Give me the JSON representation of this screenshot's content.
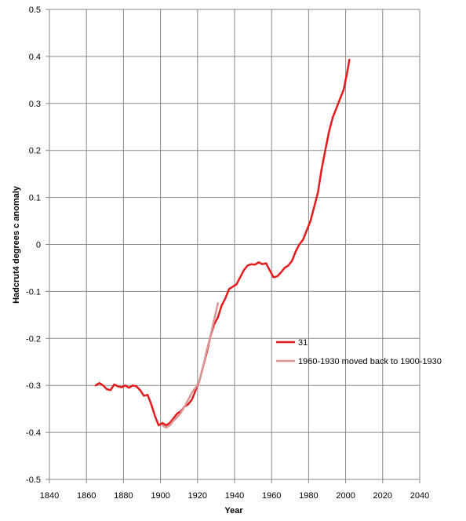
{
  "chart_data": {
    "type": "line",
    "title": "",
    "xlabel": "Year",
    "ylabel": "Hadcrut4 degrees c anomaly",
    "xlim": [
      1840,
      2040
    ],
    "ylim": [
      -0.5,
      0.5
    ],
    "x_ticks": [
      1840,
      1860,
      1880,
      1900,
      1920,
      1940,
      1960,
      1980,
      2000,
      2020,
      2040
    ],
    "y_ticks": [
      -0.5,
      -0.4,
      -0.3,
      -0.2,
      -0.1,
      0,
      0.1,
      0.2,
      0.3,
      0.4,
      0.5
    ],
    "grid": true,
    "legend_position": "right",
    "series": [
      {
        "name": "31",
        "color": "#e41a1c",
        "x": [
          1865,
          1867,
          1869,
          1871,
          1873,
          1875,
          1877,
          1879,
          1881,
          1883,
          1885,
          1887,
          1889,
          1891,
          1893,
          1895,
          1897,
          1899,
          1901,
          1903,
          1905,
          1907,
          1909,
          1911,
          1913,
          1915,
          1917,
          1919,
          1921,
          1923,
          1925,
          1927,
          1929,
          1931,
          1933,
          1935,
          1937,
          1939,
          1941,
          1943,
          1945,
          1947,
          1949,
          1951,
          1953,
          1955,
          1957,
          1959,
          1961,
          1963,
          1965,
          1967,
          1969,
          1971,
          1973,
          1975,
          1977,
          1979,
          1981,
          1983,
          1985,
          1987,
          1989,
          1991,
          1993,
          1995,
          1997,
          1999,
          2001,
          2002
        ],
        "y": [
          -0.3,
          -0.295,
          -0.3,
          -0.308,
          -0.31,
          -0.298,
          -0.302,
          -0.304,
          -0.3,
          -0.305,
          -0.3,
          -0.302,
          -0.31,
          -0.322,
          -0.32,
          -0.34,
          -0.365,
          -0.385,
          -0.38,
          -0.385,
          -0.38,
          -0.37,
          -0.36,
          -0.355,
          -0.345,
          -0.34,
          -0.33,
          -0.31,
          -0.29,
          -0.26,
          -0.23,
          -0.195,
          -0.17,
          -0.155,
          -0.13,
          -0.115,
          -0.095,
          -0.09,
          -0.085,
          -0.07,
          -0.055,
          -0.045,
          -0.042,
          -0.043,
          -0.038,
          -0.042,
          -0.04,
          -0.055,
          -0.07,
          -0.068,
          -0.06,
          -0.05,
          -0.045,
          -0.035,
          -0.015,
          0.0,
          0.01,
          0.03,
          0.05,
          0.08,
          0.11,
          0.16,
          0.2,
          0.24,
          0.27,
          0.29,
          0.31,
          0.33,
          0.37,
          0.393
        ]
      },
      {
        "name": "1960-1930 moved back to 1900-1930",
        "color": "#d99694",
        "x": [
          1901,
          1903,
          1905,
          1907,
          1909,
          1911,
          1913,
          1915,
          1917,
          1919,
          1921,
          1923,
          1925,
          1927,
          1929,
          1931
        ],
        "y": [
          -0.385,
          -0.39,
          -0.385,
          -0.375,
          -0.368,
          -0.358,
          -0.345,
          -0.33,
          -0.315,
          -0.305,
          -0.29,
          -0.26,
          -0.225,
          -0.195,
          -0.16,
          -0.125
        ]
      }
    ]
  }
}
